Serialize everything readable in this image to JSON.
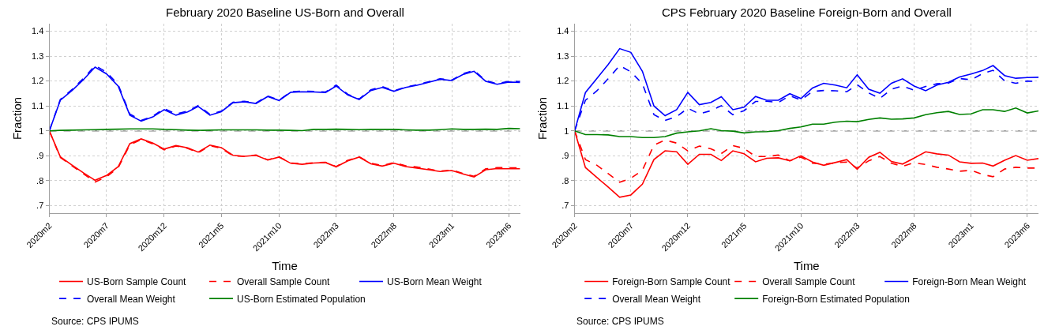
{
  "chart_data": [
    {
      "type": "line",
      "title": "February 2020 Baseline US-Born and Overall",
      "xlabel": "Time",
      "ylabel": "Fraction",
      "x": [
        "2020-02",
        "2020-03",
        "2020-04",
        "2020-05",
        "2020-06",
        "2020-07",
        "2020-08",
        "2020-09",
        "2020-10",
        "2020-11",
        "2020-12",
        "2021-01",
        "2021-02",
        "2021-03",
        "2021-04",
        "2021-05",
        "2021-06",
        "2021-07",
        "2021-08",
        "2021-09",
        "2021-10",
        "2021-11",
        "2021-12",
        "2022-01",
        "2022-02",
        "2022-03",
        "2022-04",
        "2022-05",
        "2022-06",
        "2022-07",
        "2022-08",
        "2022-09",
        "2022-10",
        "2022-11",
        "2022-12",
        "2023-01",
        "2023-02",
        "2023-03",
        "2023-04",
        "2023-05",
        "2023-06",
        "2023-07"
      ],
      "series": [
        {
          "name": "US-Born Sample Count",
          "color": "#ff0000",
          "line_style": "solid",
          "values": [
            1.0,
            0.896,
            0.863,
            0.832,
            0.802,
            0.821,
            0.856,
            0.949,
            0.968,
            0.951,
            0.927,
            0.941,
            0.932,
            0.915,
            0.943,
            0.933,
            0.902,
            0.898,
            0.902,
            0.883,
            0.895,
            0.87,
            0.866,
            0.871,
            0.873,
            0.856,
            0.88,
            0.895,
            0.868,
            0.859,
            0.87,
            0.857,
            0.851,
            0.844,
            0.837,
            0.841,
            0.827,
            0.815,
            0.844,
            0.849,
            0.848,
            0.848
          ]
        },
        {
          "name": "Overall Sample Count",
          "color": "#ff0000",
          "line_style": "dashed",
          "values": [
            1.0,
            0.893,
            0.86,
            0.828,
            0.795,
            0.815,
            0.852,
            0.944,
            0.965,
            0.948,
            0.924,
            0.939,
            0.93,
            0.912,
            0.941,
            0.93,
            0.9,
            0.898,
            0.903,
            0.884,
            0.896,
            0.871,
            0.868,
            0.872,
            0.874,
            0.857,
            0.882,
            0.896,
            0.87,
            0.861,
            0.873,
            0.86,
            0.855,
            0.847,
            0.839,
            0.843,
            0.829,
            0.818,
            0.848,
            0.853,
            0.852,
            0.852
          ]
        },
        {
          "name": "US-Born Mean Weight",
          "color": "#0000ff",
          "line_style": "solid",
          "values": [
            1.0,
            1.123,
            1.162,
            1.205,
            1.256,
            1.229,
            1.18,
            1.063,
            1.039,
            1.056,
            1.085,
            1.063,
            1.076,
            1.098,
            1.063,
            1.077,
            1.113,
            1.117,
            1.11,
            1.138,
            1.122,
            1.155,
            1.157,
            1.156,
            1.154,
            1.18,
            1.144,
            1.126,
            1.162,
            1.174,
            1.159,
            1.174,
            1.183,
            1.195,
            1.207,
            1.202,
            1.227,
            1.239,
            1.199,
            1.187,
            1.196,
            1.194
          ]
        },
        {
          "name": "Overall Mean Weight",
          "color": "#0000ff",
          "line_style": "dashed",
          "values": [
            1.0,
            1.126,
            1.166,
            1.21,
            1.262,
            1.236,
            1.186,
            1.068,
            1.042,
            1.059,
            1.09,
            1.067,
            1.08,
            1.102,
            1.066,
            1.079,
            1.115,
            1.119,
            1.112,
            1.14,
            1.123,
            1.157,
            1.16,
            1.158,
            1.156,
            1.184,
            1.147,
            1.128,
            1.165,
            1.178,
            1.161,
            1.176,
            1.185,
            1.197,
            1.209,
            1.204,
            1.23,
            1.242,
            1.202,
            1.189,
            1.199,
            1.198
          ]
        },
        {
          "name": "US-Born Estimated Population",
          "color": "#008000",
          "line_style": "solid",
          "values": [
            1.0,
            1.002,
            1.003,
            1.004,
            1.005,
            1.006,
            1.007,
            1.008,
            1.008,
            1.008,
            1.006,
            1.005,
            1.003,
            1.002,
            1.003,
            1.004,
            1.004,
            1.004,
            1.004,
            1.003,
            1.003,
            1.002,
            1.001,
            1.006,
            1.006,
            1.007,
            1.006,
            1.005,
            1.006,
            1.006,
            1.006,
            1.004,
            1.003,
            1.003,
            1.005,
            1.008,
            1.006,
            1.006,
            1.007,
            1.006,
            1.01,
            1.009
          ]
        }
      ],
      "xlim": [
        "2020-02",
        "2023-07"
      ],
      "xticks": [
        {
          "value": "2020-02",
          "label": "2020m2"
        },
        {
          "value": "2020-07",
          "label": "2020m7"
        },
        {
          "value": "2020-12",
          "label": "2020m12"
        },
        {
          "value": "2021-05",
          "label": "2021m5"
        },
        {
          "value": "2021-10",
          "label": "2021m10"
        },
        {
          "value": "2022-03",
          "label": "2022m3"
        },
        {
          "value": "2022-08",
          "label": "2022m8"
        },
        {
          "value": "2023-01",
          "label": "2023m1"
        },
        {
          "value": "2023-06",
          "label": "2023m6"
        }
      ],
      "ylim": [
        0.67,
        1.43
      ],
      "yticks": [
        {
          "value": 0.7,
          "label": ".7"
        },
        {
          "value": 0.8,
          "label": ".8"
        },
        {
          "value": 0.9,
          "label": ".9"
        },
        1,
        1.1,
        1.2,
        1.3,
        1.4
      ],
      "grid": true,
      "legend": "bottom",
      "ref_lines": [
        {
          "axis": "y",
          "value": 1,
          "color": "#808080",
          "line_style": "dashed"
        }
      ],
      "annotations": [
        "Source: CPS IPUMS"
      ]
    },
    {
      "type": "line",
      "title": "CPS February 2020 Baseline Foreign-Born and Overall",
      "xlabel": "Time",
      "ylabel": "Fraction",
      "x": [
        "2020-02",
        "2020-03",
        "2020-04",
        "2020-05",
        "2020-06",
        "2020-07",
        "2020-08",
        "2020-09",
        "2020-10",
        "2020-11",
        "2020-12",
        "2021-01",
        "2021-02",
        "2021-03",
        "2021-04",
        "2021-05",
        "2021-06",
        "2021-07",
        "2021-08",
        "2021-09",
        "2021-10",
        "2021-11",
        "2021-12",
        "2022-01",
        "2022-02",
        "2022-03",
        "2022-04",
        "2022-05",
        "2022-06",
        "2022-07",
        "2022-08",
        "2022-09",
        "2022-10",
        "2022-11",
        "2022-12",
        "2023-01",
        "2023-02",
        "2023-03",
        "2023-04",
        "2023-05",
        "2023-06",
        "2023-07"
      ],
      "series": [
        {
          "name": "Foreign-Born Sample Count",
          "color": "#ff0000",
          "line_style": "solid",
          "values": [
            1.0,
            0.853,
            0.813,
            0.775,
            0.734,
            0.743,
            0.786,
            0.885,
            0.92,
            0.916,
            0.866,
            0.906,
            0.906,
            0.881,
            0.92,
            0.908,
            0.876,
            0.89,
            0.892,
            0.88,
            0.9,
            0.875,
            0.862,
            0.873,
            0.885,
            0.846,
            0.894,
            0.914,
            0.877,
            0.867,
            0.891,
            0.916,
            0.908,
            0.903,
            0.876,
            0.87,
            0.871,
            0.859,
            0.882,
            0.901,
            0.882,
            0.889
          ]
        },
        {
          "name": "Overall Sample Count",
          "color": "#ff0000",
          "line_style": "dashed",
          "values": [
            1.0,
            0.885,
            0.862,
            0.829,
            0.794,
            0.81,
            0.842,
            0.943,
            0.963,
            0.951,
            0.92,
            0.939,
            0.928,
            0.909,
            0.941,
            0.93,
            0.897,
            0.897,
            0.903,
            0.88,
            0.895,
            0.87,
            0.866,
            0.872,
            0.875,
            0.851,
            0.88,
            0.897,
            0.87,
            0.858,
            0.872,
            0.865,
            0.854,
            0.847,
            0.838,
            0.842,
            0.825,
            0.816,
            0.847,
            0.854,
            0.851,
            0.851
          ]
        },
        {
          "name": "Foreign-Born Mean Weight",
          "color": "#0000ff",
          "line_style": "solid",
          "values": [
            1.0,
            1.154,
            1.211,
            1.266,
            1.33,
            1.315,
            1.239,
            1.1,
            1.061,
            1.085,
            1.154,
            1.105,
            1.114,
            1.137,
            1.085,
            1.095,
            1.138,
            1.123,
            1.123,
            1.149,
            1.13,
            1.172,
            1.191,
            1.184,
            1.173,
            1.225,
            1.167,
            1.151,
            1.191,
            1.209,
            1.18,
            1.161,
            1.184,
            1.195,
            1.216,
            1.228,
            1.242,
            1.262,
            1.222,
            1.211,
            1.214,
            1.215
          ]
        },
        {
          "name": "Overall Mean Weight",
          "color": "#0000ff",
          "line_style": "dashed",
          "values": [
            1.0,
            1.123,
            1.161,
            1.209,
            1.262,
            1.237,
            1.189,
            1.065,
            1.042,
            1.057,
            1.091,
            1.068,
            1.081,
            1.101,
            1.065,
            1.081,
            1.118,
            1.119,
            1.114,
            1.141,
            1.124,
            1.158,
            1.162,
            1.161,
            1.157,
            1.185,
            1.152,
            1.13,
            1.167,
            1.18,
            1.163,
            1.178,
            1.189,
            1.192,
            1.21,
            1.205,
            1.23,
            1.243,
            1.201,
            1.191,
            1.2,
            1.197
          ]
        },
        {
          "name": "Foreign-Born Estimated Population",
          "color": "#008000",
          "line_style": "solid",
          "values": [
            1.0,
            0.985,
            0.985,
            0.984,
            0.977,
            0.977,
            0.973,
            0.973,
            0.977,
            0.991,
            0.996,
            1.0,
            1.009,
            1.001,
            0.999,
            0.992,
            0.996,
            0.997,
            1.001,
            1.01,
            1.016,
            1.027,
            1.027,
            1.035,
            1.039,
            1.037,
            1.046,
            1.052,
            1.047,
            1.048,
            1.052,
            1.065,
            1.073,
            1.078,
            1.066,
            1.068,
            1.085,
            1.085,
            1.078,
            1.092,
            1.072,
            1.08
          ]
        }
      ],
      "xlim": [
        "2020-02",
        "2023-07"
      ],
      "xticks": [
        {
          "value": "2020-02",
          "label": "2020m2"
        },
        {
          "value": "2020-07",
          "label": "2020m7"
        },
        {
          "value": "2020-12",
          "label": "2020m12"
        },
        {
          "value": "2021-05",
          "label": "2021m5"
        },
        {
          "value": "2021-10",
          "label": "2021m10"
        },
        {
          "value": "2022-03",
          "label": "2022m3"
        },
        {
          "value": "2022-08",
          "label": "2022m8"
        },
        {
          "value": "2023-01",
          "label": "2023m1"
        },
        {
          "value": "2023-06",
          "label": "2023m6"
        }
      ],
      "ylim": [
        0.67,
        1.43
      ],
      "yticks": [
        {
          "value": 0.7,
          "label": ".7"
        },
        {
          "value": 0.8,
          "label": ".8"
        },
        {
          "value": 0.9,
          "label": ".9"
        },
        1,
        1.1,
        1.2,
        1.3,
        1.4
      ],
      "grid": true,
      "legend": "bottom",
      "ref_lines": [
        {
          "axis": "y",
          "value": 1,
          "color": "#808080",
          "line_style": "dashed"
        }
      ],
      "annotations": [
        "Source: CPS IPUMS"
      ]
    }
  ]
}
